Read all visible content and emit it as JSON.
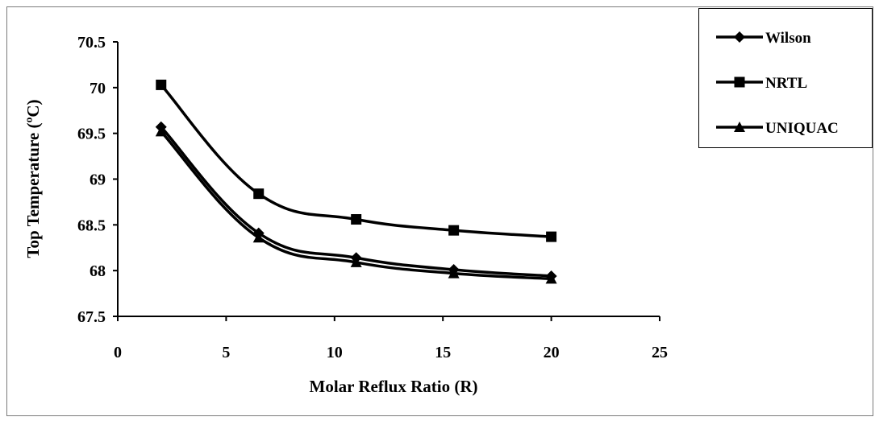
{
  "chart_data": {
    "type": "line",
    "xlabel": "Molar Reflux Ratio (R)",
    "ylabel": "Top Temperature (ºC)",
    "xlim": [
      0,
      25
    ],
    "ylim": [
      67.5,
      70.5
    ],
    "xticks": [
      0,
      5,
      10,
      15,
      20,
      25
    ],
    "yticks": [
      67.5,
      68,
      68.5,
      69,
      69.5,
      70,
      70.5
    ],
    "x": [
      2,
      6.5,
      11,
      15.5,
      20
    ],
    "grid": false,
    "legend_position": "right",
    "series": [
      {
        "name": "Wilson",
        "marker": "diamond",
        "values": [
          69.57,
          68.41,
          68.14,
          68.01,
          67.94
        ]
      },
      {
        "name": "NRTL",
        "marker": "square",
        "values": [
          70.03,
          68.84,
          68.56,
          68.44,
          68.37
        ]
      },
      {
        "name": "UNIQUAC",
        "marker": "triangle",
        "values": [
          69.52,
          68.36,
          68.09,
          67.97,
          67.91
        ]
      }
    ],
    "line_color": "#000000"
  }
}
